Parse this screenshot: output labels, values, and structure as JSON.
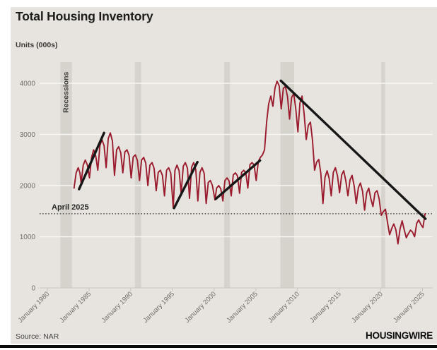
{
  "header": {
    "title": "Total Housing Inventory",
    "units_label": "Units (000s)"
  },
  "footer": {
    "source": "Source: NAR",
    "brand": "HOUSINGWIRE"
  },
  "annotations": {
    "recessions_label": "Recessions",
    "reference_label": "April 2025"
  },
  "colors": {
    "card_bg": "#e7e4df",
    "recession_band": "#d6d3cd",
    "gridline": "#f7f6f2",
    "axis": "#c9c5bf",
    "axis_text": "#716d68",
    "line": "#9a1b2d",
    "trendline": "#171717",
    "reference_line": "#4a4846",
    "annotation_text": "#2a2927"
  },
  "chart_data": {
    "type": "line",
    "title": "Total Housing Inventory",
    "ylabel": "Units (000s)",
    "xlabel": "",
    "legend": "none",
    "grid": "horizontal",
    "y_ticks": [
      0,
      1000,
      2000,
      3000,
      4000
    ],
    "ylim": [
      0,
      4400
    ],
    "x_ticks": [
      "January 1980",
      "January 1985",
      "January 1990",
      "January 1995",
      "January 2000",
      "January 2005",
      "January 2010",
      "January 2015",
      "January 2020",
      "January 2025"
    ],
    "x_tick_years": [
      1980,
      1985,
      1990,
      1995,
      2000,
      2005,
      2010,
      2015,
      2020,
      2025
    ],
    "xlim": [
      1980,
      2026
    ],
    "recessions": [
      [
        1981.55,
        1982.95
      ],
      [
        1990.5,
        1991.25
      ],
      [
        2001.2,
        2001.9
      ],
      [
        2007.95,
        2009.6
      ],
      [
        2020.05,
        2020.5
      ]
    ],
    "reference_line": {
      "label": "April 2025",
      "value": 1450
    },
    "trendlines": [
      [
        [
          1983.8,
          1930
        ],
        [
          1986.8,
          3030
        ]
      ],
      [
        [
          1995.2,
          1560
        ],
        [
          1998.0,
          2460
        ]
      ],
      [
        [
          2000.2,
          1740
        ],
        [
          2005.5,
          2490
        ]
      ],
      [
        [
          2008.0,
          4050
        ],
        [
          2025.35,
          1350
        ]
      ]
    ],
    "series": [
      {
        "name": "Total housing inventory (000s)",
        "points": [
          [
            1983.2,
            1950
          ],
          [
            1983.45,
            2250
          ],
          [
            1983.7,
            2350
          ],
          [
            1983.9,
            2250
          ],
          [
            1984.05,
            2050
          ],
          [
            1984.3,
            2400
          ],
          [
            1984.55,
            2500
          ],
          [
            1984.8,
            2400
          ],
          [
            1985.05,
            2150
          ],
          [
            1985.3,
            2550
          ],
          [
            1985.55,
            2700
          ],
          [
            1985.8,
            2580
          ],
          [
            1986.05,
            2300
          ],
          [
            1986.3,
            2780
          ],
          [
            1986.55,
            2900
          ],
          [
            1986.8,
            2780
          ],
          [
            1987.05,
            2350
          ],
          [
            1987.3,
            2920
          ],
          [
            1987.55,
            3030
          ],
          [
            1987.8,
            2870
          ],
          [
            1988.05,
            2200
          ],
          [
            1988.3,
            2700
          ],
          [
            1988.55,
            2760
          ],
          [
            1988.8,
            2640
          ],
          [
            1989.05,
            2250
          ],
          [
            1989.3,
            2660
          ],
          [
            1989.55,
            2700
          ],
          [
            1989.8,
            2590
          ],
          [
            1990.05,
            2150
          ],
          [
            1990.3,
            2560
          ],
          [
            1990.55,
            2600
          ],
          [
            1990.8,
            2490
          ],
          [
            1991.05,
            2100
          ],
          [
            1991.3,
            2500
          ],
          [
            1991.55,
            2550
          ],
          [
            1991.8,
            2440
          ],
          [
            1992.05,
            2000
          ],
          [
            1992.3,
            2400
          ],
          [
            1992.55,
            2450
          ],
          [
            1992.8,
            2340
          ],
          [
            1993.05,
            1900
          ],
          [
            1993.3,
            2260
          ],
          [
            1993.55,
            2300
          ],
          [
            1993.8,
            2200
          ],
          [
            1994.05,
            1800
          ],
          [
            1994.3,
            2300
          ],
          [
            1994.55,
            2350
          ],
          [
            1994.8,
            2240
          ],
          [
            1995.1,
            1560
          ],
          [
            1995.3,
            2300
          ],
          [
            1995.55,
            2400
          ],
          [
            1995.8,
            2290
          ],
          [
            1996.05,
            1850
          ],
          [
            1996.3,
            2380
          ],
          [
            1996.55,
            2450
          ],
          [
            1996.8,
            2340
          ],
          [
            1997.05,
            1750
          ],
          [
            1997.3,
            2360
          ],
          [
            1997.55,
            2450
          ],
          [
            1997.8,
            2310
          ],
          [
            1998.05,
            1700
          ],
          [
            1998.3,
            2260
          ],
          [
            1998.55,
            2350
          ],
          [
            1998.8,
            2240
          ],
          [
            1999.05,
            1650
          ],
          [
            1999.3,
            2060
          ],
          [
            1999.55,
            2100
          ],
          [
            1999.8,
            2000
          ],
          [
            2000.1,
            1720
          ],
          [
            2000.3,
            1950
          ],
          [
            2000.55,
            2000
          ],
          [
            2000.8,
            1940
          ],
          [
            2001.05,
            1700
          ],
          [
            2001.3,
            2100
          ],
          [
            2001.55,
            2150
          ],
          [
            2001.8,
            2090
          ],
          [
            2002.05,
            1800
          ],
          [
            2002.3,
            2210
          ],
          [
            2002.55,
            2250
          ],
          [
            2002.8,
            2190
          ],
          [
            2003.05,
            1850
          ],
          [
            2003.3,
            2260
          ],
          [
            2003.55,
            2300
          ],
          [
            2003.8,
            2250
          ],
          [
            2004.05,
            1950
          ],
          [
            2004.3,
            2410
          ],
          [
            2004.55,
            2450
          ],
          [
            2004.8,
            2400
          ],
          [
            2005.05,
            2100
          ],
          [
            2005.3,
            2470
          ],
          [
            2005.55,
            2550
          ],
          [
            2005.8,
            2600
          ],
          [
            2006.05,
            2700
          ],
          [
            2006.3,
            3250
          ],
          [
            2006.55,
            3600
          ],
          [
            2006.8,
            3750
          ],
          [
            2007.05,
            3550
          ],
          [
            2007.3,
            3910
          ],
          [
            2007.55,
            4040
          ],
          [
            2007.8,
            3950
          ],
          [
            2008.05,
            3500
          ],
          [
            2008.3,
            3900
          ],
          [
            2008.55,
            3940
          ],
          [
            2008.8,
            3740
          ],
          [
            2009.05,
            3300
          ],
          [
            2009.3,
            3720
          ],
          [
            2009.55,
            3800
          ],
          [
            2009.8,
            3500
          ],
          [
            2010.05,
            3050
          ],
          [
            2010.3,
            3620
          ],
          [
            2010.55,
            3750
          ],
          [
            2010.8,
            3400
          ],
          [
            2011.05,
            2900
          ],
          [
            2011.3,
            3180
          ],
          [
            2011.55,
            3240
          ],
          [
            2011.8,
            2890
          ],
          [
            2012.05,
            2300
          ],
          [
            2012.3,
            2460
          ],
          [
            2012.55,
            2510
          ],
          [
            2012.8,
            2240
          ],
          [
            2013.05,
            1650
          ],
          [
            2013.3,
            2160
          ],
          [
            2013.55,
            2290
          ],
          [
            2013.8,
            2140
          ],
          [
            2014.05,
            1800
          ],
          [
            2014.3,
            2260
          ],
          [
            2014.55,
            2350
          ],
          [
            2014.8,
            2190
          ],
          [
            2015.05,
            1860
          ],
          [
            2015.3,
            2210
          ],
          [
            2015.55,
            2290
          ],
          [
            2015.8,
            2090
          ],
          [
            2016.05,
            1800
          ],
          [
            2016.3,
            2110
          ],
          [
            2016.55,
            2200
          ],
          [
            2016.8,
            1990
          ],
          [
            2017.05,
            1650
          ],
          [
            2017.3,
            1960
          ],
          [
            2017.55,
            2050
          ],
          [
            2017.8,
            1890
          ],
          [
            2018.05,
            1520
          ],
          [
            2018.3,
            1860
          ],
          [
            2018.55,
            1950
          ],
          [
            2018.8,
            1740
          ],
          [
            2019.05,
            1590
          ],
          [
            2019.3,
            1860
          ],
          [
            2019.55,
            1900
          ],
          [
            2019.8,
            1740
          ],
          [
            2020.05,
            1420
          ],
          [
            2020.3,
            1490
          ],
          [
            2020.55,
            1540
          ],
          [
            2020.8,
            1280
          ],
          [
            2021.05,
            1040
          ],
          [
            2021.3,
            1160
          ],
          [
            2021.55,
            1250
          ],
          [
            2021.8,
            1140
          ],
          [
            2022.05,
            860
          ],
          [
            2022.3,
            1150
          ],
          [
            2022.55,
            1310
          ],
          [
            2022.8,
            1140
          ],
          [
            2023.05,
            980
          ],
          [
            2023.3,
            1060
          ],
          [
            2023.55,
            1130
          ],
          [
            2023.8,
            1090
          ],
          [
            2024.05,
            1000
          ],
          [
            2024.3,
            1260
          ],
          [
            2024.55,
            1330
          ],
          [
            2024.8,
            1240
          ],
          [
            2025.05,
            1180
          ],
          [
            2025.3,
            1450
          ]
        ]
      }
    ]
  }
}
